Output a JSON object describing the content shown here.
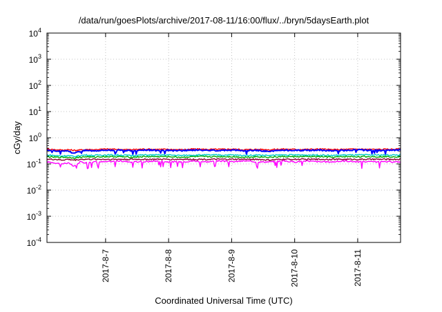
{
  "chart_data": {
    "type": "line",
    "title": "/data/run/goesPlots/archive/2017-08-11/16:00/flux/../bryn/5daysEarth.plot",
    "xlabel": "Coordinated Universal Time (UTC)",
    "ylabel": "cGy/day",
    "yscale": "log",
    "ylim": [
      0.0001,
      10000
    ],
    "xlim": [
      6.07,
      11.68
    ],
    "grid": true,
    "y_ticks": [
      {
        "value": 0.0001,
        "base": "10",
        "exp": "-4"
      },
      {
        "value": 0.001,
        "base": "10",
        "exp": "-3"
      },
      {
        "value": 0.01,
        "base": "10",
        "exp": "-2"
      },
      {
        "value": 0.1,
        "base": "10",
        "exp": "-1"
      },
      {
        "value": 1,
        "base": "10",
        "exp": "0"
      },
      {
        "value": 10,
        "base": "10",
        "exp": "1"
      },
      {
        "value": 100,
        "base": "10",
        "exp": "2"
      },
      {
        "value": 1000,
        "base": "10",
        "exp": "3"
      },
      {
        "value": 10000,
        "base": "10",
        "exp": "4"
      }
    ],
    "x_ticks": [
      {
        "value": 7,
        "label": "2017-8-7"
      },
      {
        "value": 8,
        "label": "2017-8-8"
      },
      {
        "value": 9,
        "label": "2017-8-9"
      },
      {
        "value": 10,
        "label": "2017-8-10"
      },
      {
        "value": 11,
        "label": "2017-8-11"
      }
    ],
    "x_unit_note": "x values are days of August 2017 (UTC)",
    "series": [
      {
        "color": "#ff00ff",
        "x": [
          6.07,
          6.2,
          6.3,
          6.4,
          6.5,
          6.6,
          6.7,
          6.8,
          6.9,
          7.0,
          7.2,
          7.4,
          7.6,
          7.8,
          8.0,
          8.2,
          8.4,
          8.6,
          8.8,
          9.0,
          9.2,
          9.4,
          9.6,
          9.8,
          10.0,
          10.2,
          10.4,
          10.6,
          10.8,
          11.0,
          11.2,
          11.4,
          11.68
        ],
        "y": [
          0.12,
          0.11,
          0.1,
          0.11,
          0.08,
          0.12,
          0.11,
          0.12,
          0.12,
          0.12,
          0.13,
          0.12,
          0.12,
          0.13,
          0.12,
          0.12,
          0.13,
          0.12,
          0.13,
          0.12,
          0.13,
          0.12,
          0.12,
          0.13,
          0.12,
          0.13,
          0.12,
          0.12,
          0.13,
          0.12,
          0.12,
          0.12,
          0.12
        ]
      },
      {
        "color": "#ff0000",
        "x": [
          6.07,
          6.2,
          6.3,
          6.4,
          6.5,
          6.6,
          6.7,
          6.8,
          6.9,
          7.0,
          7.2,
          7.4,
          7.6,
          7.8,
          8.0,
          8.2,
          8.4,
          8.6,
          8.8,
          9.0,
          9.2,
          9.4,
          9.6,
          9.8,
          10.0,
          10.2,
          10.4,
          10.6,
          10.8,
          11.0,
          11.2,
          11.4,
          11.68
        ],
        "y": [
          0.37,
          0.35,
          0.34,
          0.35,
          0.33,
          0.34,
          0.36,
          0.35,
          0.36,
          0.37,
          0.36,
          0.35,
          0.37,
          0.36,
          0.36,
          0.35,
          0.37,
          0.36,
          0.36,
          0.37,
          0.35,
          0.36,
          0.35,
          0.37,
          0.36,
          0.36,
          0.37,
          0.35,
          0.36,
          0.37,
          0.36,
          0.36,
          0.37
        ]
      },
      {
        "color": "#0000ff",
        "x": [
          6.07,
          6.2,
          6.3,
          6.4,
          6.5,
          6.6,
          6.7,
          6.8,
          6.9,
          7.0,
          7.2,
          7.4,
          7.6,
          7.8,
          8.0,
          8.2,
          8.4,
          8.6,
          8.8,
          9.0,
          9.2,
          9.4,
          9.6,
          9.8,
          10.0,
          10.2,
          10.4,
          10.6,
          10.8,
          11.0,
          11.2,
          11.4,
          11.68
        ],
        "y": [
          0.34,
          0.32,
          0.3,
          0.32,
          0.25,
          0.31,
          0.33,
          0.32,
          0.33,
          0.34,
          0.33,
          0.32,
          0.34,
          0.33,
          0.33,
          0.32,
          0.34,
          0.33,
          0.33,
          0.34,
          0.32,
          0.33,
          0.3,
          0.34,
          0.33,
          0.33,
          0.34,
          0.32,
          0.33,
          0.34,
          0.33,
          0.33,
          0.34
        ]
      },
      {
        "color": "#00cccc",
        "x": [
          6.07,
          6.2,
          6.3,
          6.4,
          6.5,
          6.6,
          6.7,
          6.8,
          6.9,
          7.0,
          7.2,
          7.4,
          7.6,
          7.8,
          8.0,
          8.2,
          8.4,
          8.6,
          8.8,
          9.0,
          9.2,
          9.4,
          9.6,
          9.8,
          10.0,
          10.2,
          10.4,
          10.6,
          10.8,
          11.0,
          11.2,
          11.4,
          11.68
        ],
        "y": [
          0.22,
          0.21,
          0.2,
          0.21,
          0.19,
          0.21,
          0.22,
          0.21,
          0.22,
          0.22,
          0.22,
          0.21,
          0.22,
          0.22,
          0.22,
          0.21,
          0.22,
          0.22,
          0.22,
          0.22,
          0.21,
          0.22,
          0.21,
          0.22,
          0.22,
          0.22,
          0.22,
          0.21,
          0.22,
          0.22,
          0.22,
          0.22,
          0.22
        ]
      },
      {
        "color": "#00aa00",
        "x": [
          6.07,
          6.2,
          6.3,
          6.4,
          6.5,
          6.6,
          6.7,
          6.8,
          6.9,
          7.0,
          7.2,
          7.4,
          7.6,
          7.8,
          8.0,
          8.2,
          8.4,
          8.6,
          8.8,
          9.0,
          9.2,
          9.4,
          9.6,
          9.8,
          10.0,
          10.2,
          10.4,
          10.6,
          10.8,
          11.0,
          11.2,
          11.4,
          11.68
        ],
        "y": [
          0.19,
          0.18,
          0.18,
          0.18,
          0.17,
          0.18,
          0.19,
          0.18,
          0.19,
          0.19,
          0.19,
          0.18,
          0.19,
          0.19,
          0.19,
          0.18,
          0.19,
          0.19,
          0.19,
          0.19,
          0.18,
          0.19,
          0.18,
          0.19,
          0.19,
          0.19,
          0.19,
          0.18,
          0.19,
          0.19,
          0.19,
          0.19,
          0.19
        ]
      },
      {
        "color": "#880033",
        "x": [
          6.07,
          6.2,
          6.3,
          6.4,
          6.5,
          6.6,
          6.7,
          6.8,
          6.9,
          7.0,
          7.2,
          7.4,
          7.6,
          7.8,
          8.0,
          8.2,
          8.4,
          8.6,
          8.8,
          9.0,
          9.2,
          9.4,
          9.6,
          9.8,
          10.0,
          10.2,
          10.4,
          10.6,
          10.8,
          11.0,
          11.2,
          11.4,
          11.68
        ],
        "y": [
          0.15,
          0.15,
          0.14,
          0.15,
          0.14,
          0.15,
          0.15,
          0.15,
          0.15,
          0.15,
          0.15,
          0.15,
          0.15,
          0.15,
          0.15,
          0.15,
          0.15,
          0.15,
          0.15,
          0.15,
          0.15,
          0.15,
          0.14,
          0.15,
          0.15,
          0.15,
          0.15,
          0.15,
          0.15,
          0.15,
          0.15,
          0.15,
          0.15
        ]
      }
    ]
  }
}
